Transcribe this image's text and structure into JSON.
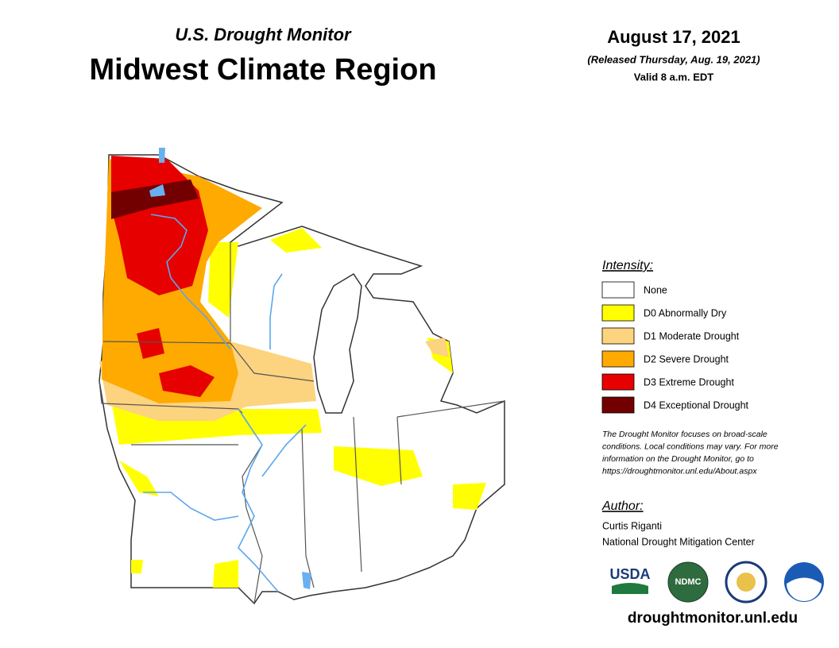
{
  "header": {
    "subtitle": "U.S. Drought Monitor",
    "title": "Midwest Climate Region",
    "date": "August 17, 2021",
    "released": "(Released Thursday, Aug. 19, 2021)",
    "valid": "Valid 8 a.m. EDT"
  },
  "legend": {
    "title": "Intensity:",
    "items": [
      {
        "label": "None",
        "color": "#ffffff"
      },
      {
        "label": "D0 Abnormally Dry",
        "color": "#ffff00"
      },
      {
        "label": "D1 Moderate Drought",
        "color": "#fcd37f"
      },
      {
        "label": "D2 Severe Drought",
        "color": "#ffaa00"
      },
      {
        "label": "D3 Extreme Drought",
        "color": "#e60000"
      },
      {
        "label": "D4 Exceptional Drought",
        "color": "#730000"
      }
    ]
  },
  "note": [
    "The Drought Monitor focuses on broad-scale",
    "conditions. Local conditions may vary. For more",
    "information on the Drought Monitor, go to",
    "https://droughtmonitor.unl.edu/About.aspx"
  ],
  "author": {
    "heading": "Author:",
    "name": "Curtis Riganti",
    "org": "National Drought Mitigation Center"
  },
  "logos": {
    "usda": "USDA",
    "ndmc": "NDMC"
  },
  "footer": {
    "url": "droughtmonitor.unl.edu"
  }
}
